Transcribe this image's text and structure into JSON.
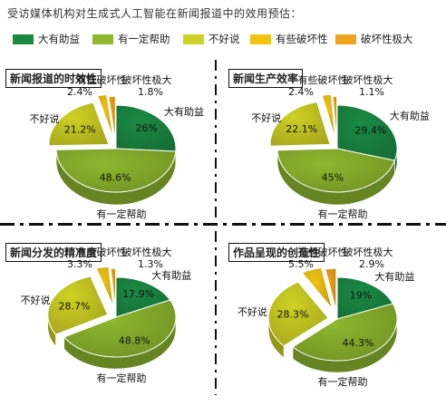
{
  "title": "受访媒体机构对生成式人工智能在新闻报道中的效用预估：",
  "colors": {
    "大有助益": "#1a8a43",
    "有一定帮助": "#8db82e",
    "不好说": "#cfd124",
    "有些破坏性": "#f2c313",
    "破坏性极大": "#f0a21a"
  },
  "legend": [
    "大有助益",
    "有一定帮助",
    "不好说",
    "有些破坏性",
    "破坏性极大"
  ],
  "chart_data": [
    {
      "type": "pie",
      "title": "新闻报道的时效性",
      "slices": [
        {
          "label": "大有助益",
          "value": 26,
          "text": "26%"
        },
        {
          "label": "有一定帮助",
          "value": 48.6,
          "text": "48.6%"
        },
        {
          "label": "不好说",
          "value": 21.2,
          "text": "21.2%"
        },
        {
          "label": "有些破坏性",
          "value": 2.4,
          "text": "2.4%"
        },
        {
          "label": "破坏性极大",
          "value": 1.8,
          "text": "1.8%"
        }
      ]
    },
    {
      "type": "pie",
      "title": "新闻生产效率",
      "slices": [
        {
          "label": "大有助益",
          "value": 29.4,
          "text": "29.4%"
        },
        {
          "label": "有一定帮助",
          "value": 45,
          "text": "45%"
        },
        {
          "label": "不好说",
          "value": 22.1,
          "text": "22.1%"
        },
        {
          "label": "有些破坏性",
          "value": 2.4,
          "text": "2.4%"
        },
        {
          "label": "破坏性极大",
          "value": 1.1,
          "text": "1.1%"
        }
      ]
    },
    {
      "type": "pie",
      "title": "新闻分发的精准度",
      "slices": [
        {
          "label": "大有助益",
          "value": 17.9,
          "text": "17.9%"
        },
        {
          "label": "有一定帮助",
          "value": 48.8,
          "text": "48.8%"
        },
        {
          "label": "不好说",
          "value": 28.7,
          "text": "28.7%"
        },
        {
          "label": "有些破坏性",
          "value": 3.3,
          "text": "3.3%"
        },
        {
          "label": "破坏性极大",
          "value": 1.3,
          "text": "1.3%"
        }
      ]
    },
    {
      "type": "pie",
      "title": "作品呈现的创造性",
      "slices": [
        {
          "label": "大有助益",
          "value": 19,
          "text": "19%"
        },
        {
          "label": "有一定帮助",
          "value": 44.3,
          "text": "44.3%"
        },
        {
          "label": "不好说",
          "value": 28.3,
          "text": "28.3%"
        },
        {
          "label": "有些破坏性",
          "value": 5.5,
          "text": "5.5%"
        },
        {
          "label": "破坏性极大",
          "value": 2.9,
          "text": "2.9%"
        }
      ]
    }
  ]
}
